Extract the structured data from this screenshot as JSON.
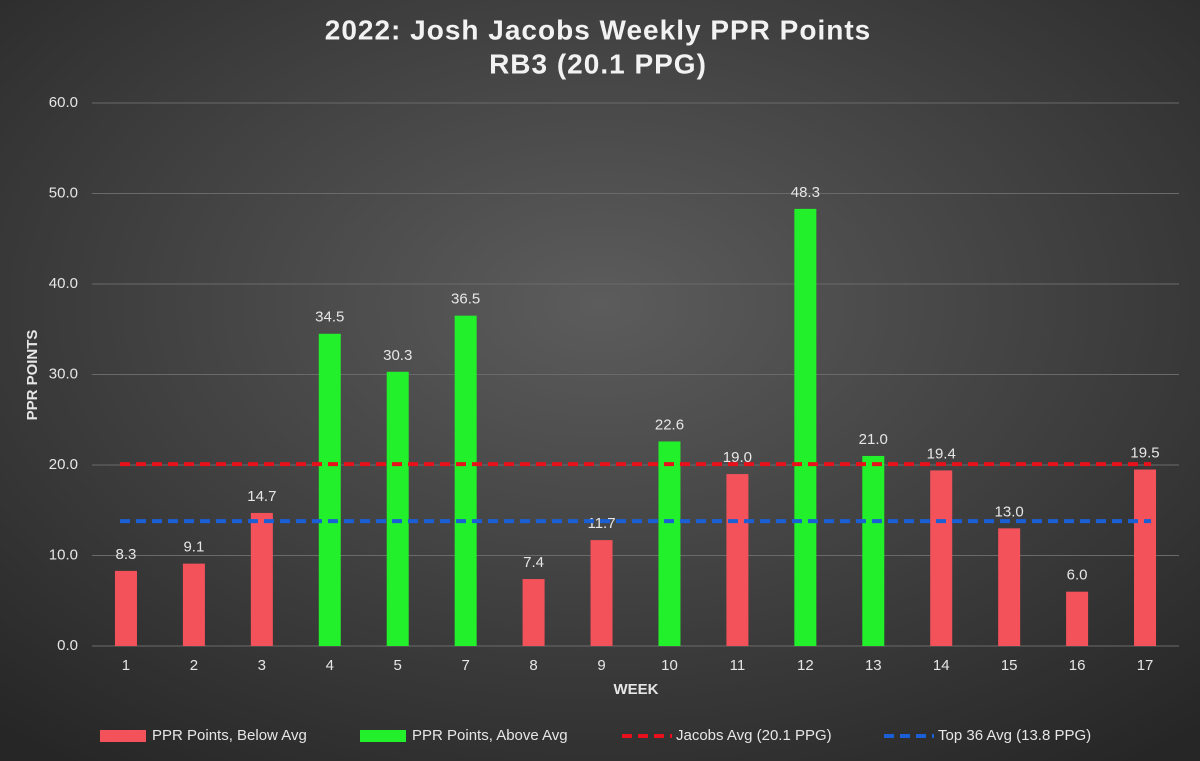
{
  "chart_data": {
    "type": "bar",
    "title": "2022: Josh Jacobs Weekly PPR Points",
    "subtitle": "RB3 (20.1 PPG)",
    "x_label": "WEEK",
    "y_label": "PPR POINTS",
    "categories": [
      "1",
      "2",
      "3",
      "4",
      "5",
      "7",
      "8",
      "9",
      "10",
      "11",
      "12",
      "13",
      "14",
      "15",
      "16",
      "17"
    ],
    "series": [
      {
        "name": "PPR Points, Below Avg",
        "type": "bar",
        "color": "#f4525a",
        "values": [
          8.3,
          9.1,
          14.7,
          null,
          null,
          null,
          7.4,
          11.7,
          null,
          19.0,
          null,
          null,
          19.4,
          13.0,
          6.0,
          19.5
        ],
        "value_labels": [
          "8.3",
          "9.1",
          "14.7",
          null,
          null,
          null,
          "7.4",
          "11.7",
          null,
          "19.0",
          null,
          null,
          "19.4",
          "13.0",
          "6.0",
          "19.5"
        ]
      },
      {
        "name": "PPR Points, Above Avg",
        "type": "bar",
        "color": "#22f02a",
        "values": [
          null,
          null,
          null,
          34.5,
          30.3,
          36.5,
          null,
          null,
          22.6,
          null,
          48.3,
          21.0,
          null,
          null,
          null,
          null
        ],
        "value_labels": [
          null,
          null,
          null,
          "34.5",
          "30.3",
          "36.5",
          null,
          null,
          "22.6",
          null,
          "48.3",
          "21.0",
          null,
          null,
          null,
          null
        ]
      },
      {
        "name": "Jacobs Avg (20.1 PPG)",
        "type": "line",
        "color": "#e8101a",
        "values": [
          20.1,
          20.1,
          20.1,
          20.1,
          20.1,
          20.1,
          20.1,
          20.1,
          20.1,
          20.1,
          20.1,
          20.1,
          20.1,
          20.1,
          20.1,
          20.1
        ]
      },
      {
        "name": "Top 36 Avg (13.8 PPG)",
        "type": "line",
        "color": "#1a5fd6",
        "values": [
          13.8,
          13.8,
          13.8,
          13.8,
          13.8,
          13.8,
          13.8,
          13.8,
          13.8,
          13.8,
          13.8,
          13.8,
          13.8,
          13.8,
          13.8,
          13.8
        ]
      }
    ],
    "ylim": [
      0,
      60
    ],
    "yticks": [
      {
        "value": 0,
        "label": "0.0"
      },
      {
        "value": 10,
        "label": "10.0"
      },
      {
        "value": 20,
        "label": "20.0"
      },
      {
        "value": 30,
        "label": "30.0"
      },
      {
        "value": 40,
        "label": "40.0"
      },
      {
        "value": 50,
        "label": "50.0"
      },
      {
        "value": 60,
        "label": "60.0"
      }
    ],
    "grid": true,
    "legend": "bottom"
  }
}
